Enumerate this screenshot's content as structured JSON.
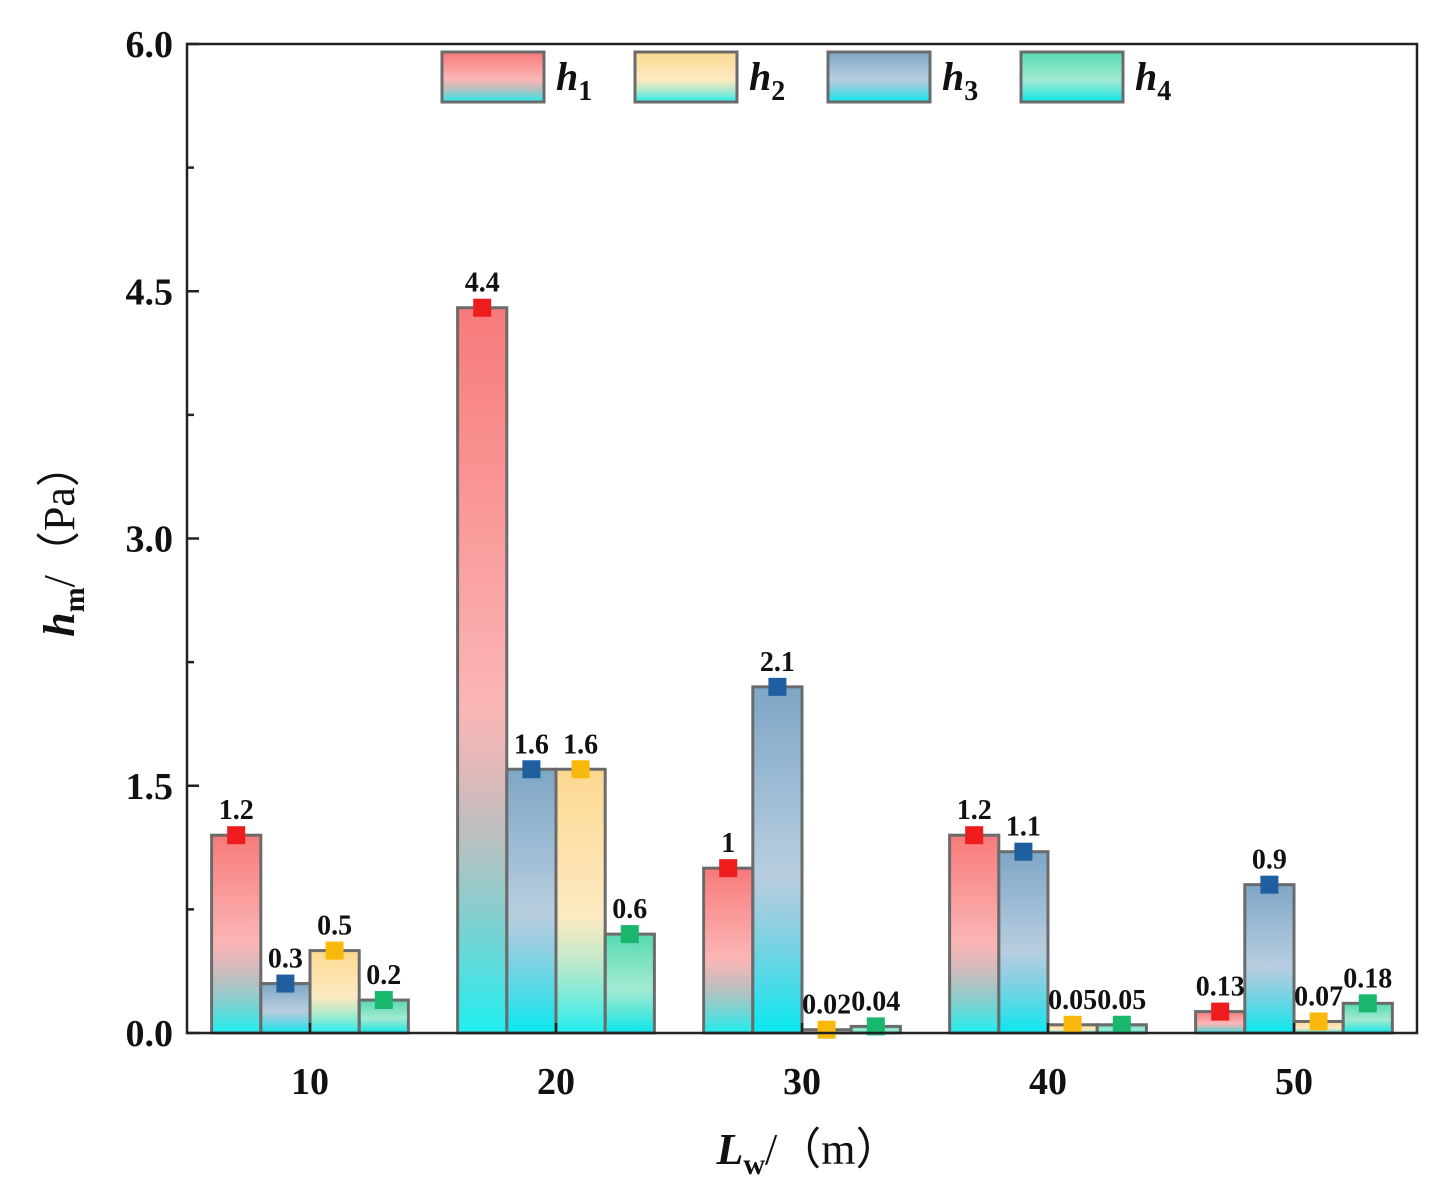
{
  "chart_data": {
    "type": "bar",
    "categories": [
      "10",
      "20",
      "30",
      "40",
      "50"
    ],
    "series": [
      {
        "name": "h",
        "sub": "1",
        "values": [
          1.2,
          4.4,
          1,
          1.2,
          0.13
        ],
        "labels": [
          "1.2",
          "4.4",
          "1",
          "1.2",
          "0.13"
        ],
        "color_top": "#f87a7a",
        "color_bottom": "#1ef0f0",
        "marker_color": "#ee1c1c"
      },
      {
        "name": "h",
        "sub": "3",
        "values": [
          0.3,
          1.6,
          2.1,
          1.1,
          0.9
        ],
        "labels": [
          "0.3",
          "1.6",
          "2.1",
          "1.1",
          "0.9"
        ],
        "color_top": "#7ea6c6",
        "color_bottom": "#07eaf0",
        "marker_color": "#1f5fa0"
      },
      {
        "name": "h",
        "sub": "2",
        "values": [
          0.5,
          1.6,
          0.02,
          0.05,
          0.07
        ],
        "labels": [
          "0.5",
          "1.6",
          "0.02",
          "0.05",
          "0.07"
        ],
        "color_top": "#fcd890",
        "color_bottom": "#20eef2",
        "marker_color": "#f8b80c"
      },
      {
        "name": "h",
        "sub": "4",
        "values": [
          0.2,
          0.6,
          0.04,
          0.05,
          0.18
        ],
        "labels": [
          "0.2",
          "0.6",
          "0.04",
          "0.05",
          "0.18"
        ],
        "color_top": "#56d9b0",
        "color_bottom": "#08e8ee",
        "marker_color": "#19b76e"
      }
    ],
    "legend": [
      {
        "name": "h",
        "sub": "1",
        "series_index": 0
      },
      {
        "name": "h",
        "sub": "2",
        "series_index": 2
      },
      {
        "name": "h",
        "sub": "3",
        "series_index": 1
      },
      {
        "name": "h",
        "sub": "4",
        "series_index": 3
      }
    ],
    "legend_position": "top-center",
    "y_ticks": [
      "0.0",
      "1.5",
      "3.0",
      "4.5",
      "6.0"
    ],
    "ylim": [
      0,
      6.0
    ],
    "xlabel": {
      "main": "L",
      "sub": "w",
      "unit": "/（m）"
    },
    "ylabel": {
      "main": "h",
      "sub": "m",
      "unit": "/（Pa）"
    },
    "grid": false
  }
}
